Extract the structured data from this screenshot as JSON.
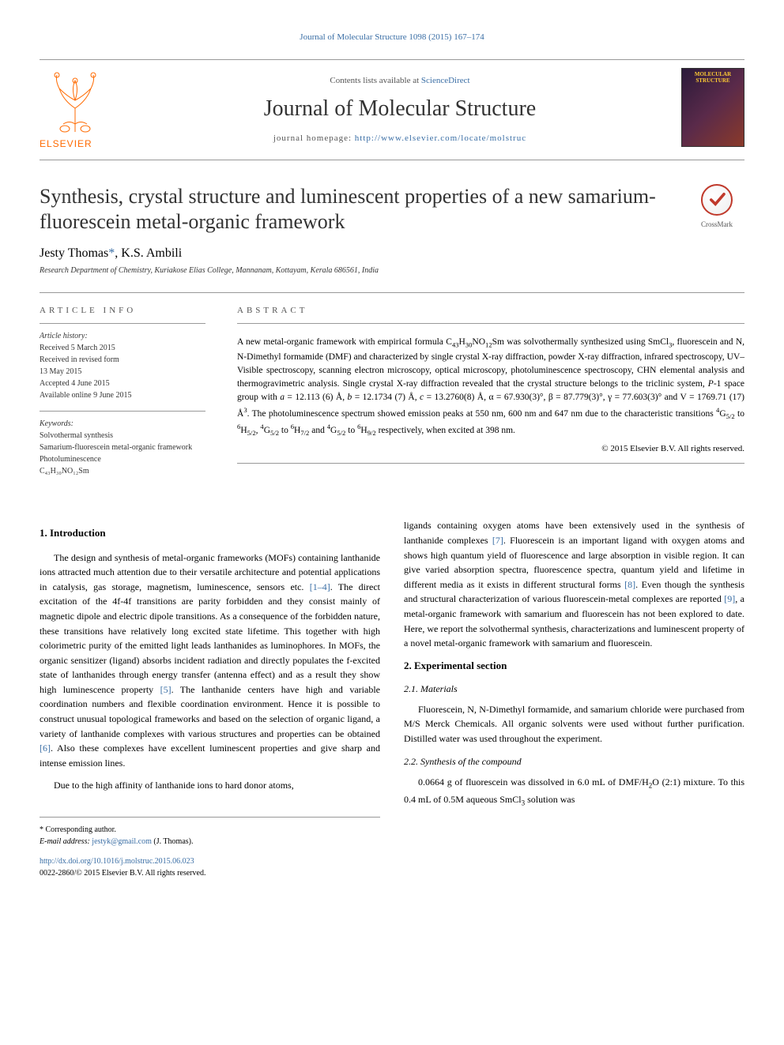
{
  "journal_ref": "Journal of Molecular Structure 1098 (2015) 167–174",
  "header": {
    "contents_prefix": "Contents lists available at ",
    "contents_link": "ScienceDirect",
    "journal_title": "Journal of Molecular Structure",
    "homepage_prefix": "journal homepage: ",
    "homepage_link": "http://www.elsevier.com/locate/molstruc",
    "publisher_name": "ELSEVIER",
    "cover_text": "MOLECULAR STRUCTURE"
  },
  "crossmark_label": "CrossMark",
  "article_title": "Synthesis, crystal structure and luminescent properties of a new samarium-fluorescein metal-organic framework",
  "authors_html": "Jesty Thomas<span class='author-link'>*</span>, K.S. Ambili",
  "affiliation": "Research Department of Chemistry, Kuriakose Elias College, Mannanam, Kottayam, Kerala 686561, India",
  "article_info": {
    "heading": "ARTICLE INFO",
    "history_title": "Article history:",
    "history_lines": [
      "Received 5 March 2015",
      "Received in revised form",
      "13 May 2015",
      "Accepted 4 June 2015",
      "Available online 9 June 2015"
    ],
    "keywords_title": "Keywords:",
    "keywords": [
      "Solvothermal synthesis",
      "Samarium-fluorescein metal-organic framework",
      "Photoluminescence",
      "C₄₃H₃₀NO₁₂Sm"
    ]
  },
  "abstract": {
    "heading": "ABSTRACT",
    "text_html": "A new metal-organic framework with empirical formula C<span class='chem-sub'>43</span>H<span class='chem-sub'>30</span>NO<span class='chem-sub'>12</span>Sm was solvothermally synthesized using SmCl<span class='chem-sub'>3</span>, fluorescein and N, N-Dimethyl formamide (DMF) and characterized by single crystal X-ray diffraction, powder X-ray diffraction, infrared spectroscopy, UV–Visible spectroscopy, scanning electron microscopy, optical microscopy, photoluminescence spectroscopy, CHN elemental analysis and thermogravimetric analysis. Single crystal X-ray diffraction revealed that the crystal structure belongs to the triclinic system, <i>P</i>-1 space group with <i>a</i> = 12.113 (6) Å, <i>b</i> = 12.1734 (7) Å, <i>c</i> = 13.2760(8) Å, α = 67.930(3)°, β = 87.779(3)°, γ = 77.603(3)° and V = 1769.71 (17) Å<span class='chem-sup'>3</span>. The photoluminescence spectrum showed emission peaks at 550 nm, 600 nm and 647 nm due to the characteristic transitions <span class='chem-sup'>4</span>G<span class='chem-sub'>5/2</span> to <span class='chem-sup'>6</span>H<span class='chem-sub'>5/2</span>, <span class='chem-sup'>4</span>G<span class='chem-sub'>5/2</span> to <span class='chem-sup'>6</span>H<span class='chem-sub'>7/2</span> and <span class='chem-sup'>4</span>G<span class='chem-sub'>5/2</span> to <span class='chem-sup'>6</span>H<span class='chem-sub'>9/2</span> respectively, when excited at 398 nm.",
    "copyright": "© 2015 Elsevier B.V. All rights reserved."
  },
  "body": {
    "intro_heading": "1. Introduction",
    "intro_p1_html": "The design and synthesis of metal-organic frameworks (MOFs) containing lanthanide ions attracted much attention due to their versatile architecture and potential applications in catalysis, gas storage, magnetism, luminescence, sensors etc. <span class='ref-link'>[1–4]</span>. The direct excitation of the 4f-4f transitions are parity forbidden and they consist mainly of magnetic dipole and electric dipole transitions. As a consequence of the forbidden nature, these transitions have relatively long excited state lifetime. This together with high colorimetric purity of the emitted light leads lanthanides as luminophores. In MOFs, the organic sensitizer (ligand) absorbs incident radiation and directly populates the f-excited state of lanthanides through energy transfer (antenna effect) and as a result they show high luminescence property <span class='ref-link'>[5]</span>. The lanthanide centers have high and variable coordination numbers and flexible coordination environment. Hence it is possible to construct unusual topological frameworks and based on the selection of organic ligand, a variety of lanthanide complexes with various structures and properties can be obtained <span class='ref-link'>[6]</span>. Also these complexes have excellent luminescent properties and give sharp and intense emission lines.",
    "intro_p2_html": "Due to the high affinity of lanthanide ions to hard donor atoms,",
    "intro_p3_html": "ligands containing oxygen atoms have been extensively used in the synthesis of lanthanide complexes <span class='ref-link'>[7]</span>. Fluorescein is an important ligand with oxygen atoms and shows high quantum yield of fluorescence and large absorption in visible region. It can give varied absorption spectra, fluorescence spectra, quantum yield and lifetime in different media as it exists in different structural forms <span class='ref-link'>[8]</span>. Even though the synthesis and structural characterization of various fluorescein-metal complexes are reported <span class='ref-link'>[9]</span>, a metal-organic framework with samarium and fluorescein has not been explored to date. Here, we report the solvothermal synthesis, characterizations and luminescent property of a novel metal-organic framework with samarium and fluorescein.",
    "exp_heading": "2. Experimental section",
    "materials_heading": "2.1. Materials",
    "materials_text": "Fluorescein, N, N-Dimethyl formamide, and samarium chloride were purchased from M/S Merck Chemicals. All organic solvents were used without further purification. Distilled water was used throughout the experiment.",
    "synthesis_heading": "2.2. Synthesis of the compound",
    "synthesis_text_html": "0.0664 g of fluorescein was dissolved in 6.0 mL of DMF/H<span class='chem-sub'>2</span>O (2:1) mixture. To this 0.4 mL of 0.5M aqueous SmCl<span class='chem-sub'>3</span> solution was"
  },
  "footer": {
    "corresponding": "* Corresponding author.",
    "email_label": "E-mail address: ",
    "email": "jestyk@gmail.com",
    "email_suffix": " (J. Thomas).",
    "doi": "http://dx.doi.org/10.1016/j.molstruc.2015.06.023",
    "issn_line": "0022-2860/© 2015 Elsevier B.V. All rights reserved."
  },
  "colors": {
    "link": "#3a6ea5",
    "elsevier_orange": "#ff6a00",
    "text": "#000000",
    "rule": "#999999"
  }
}
